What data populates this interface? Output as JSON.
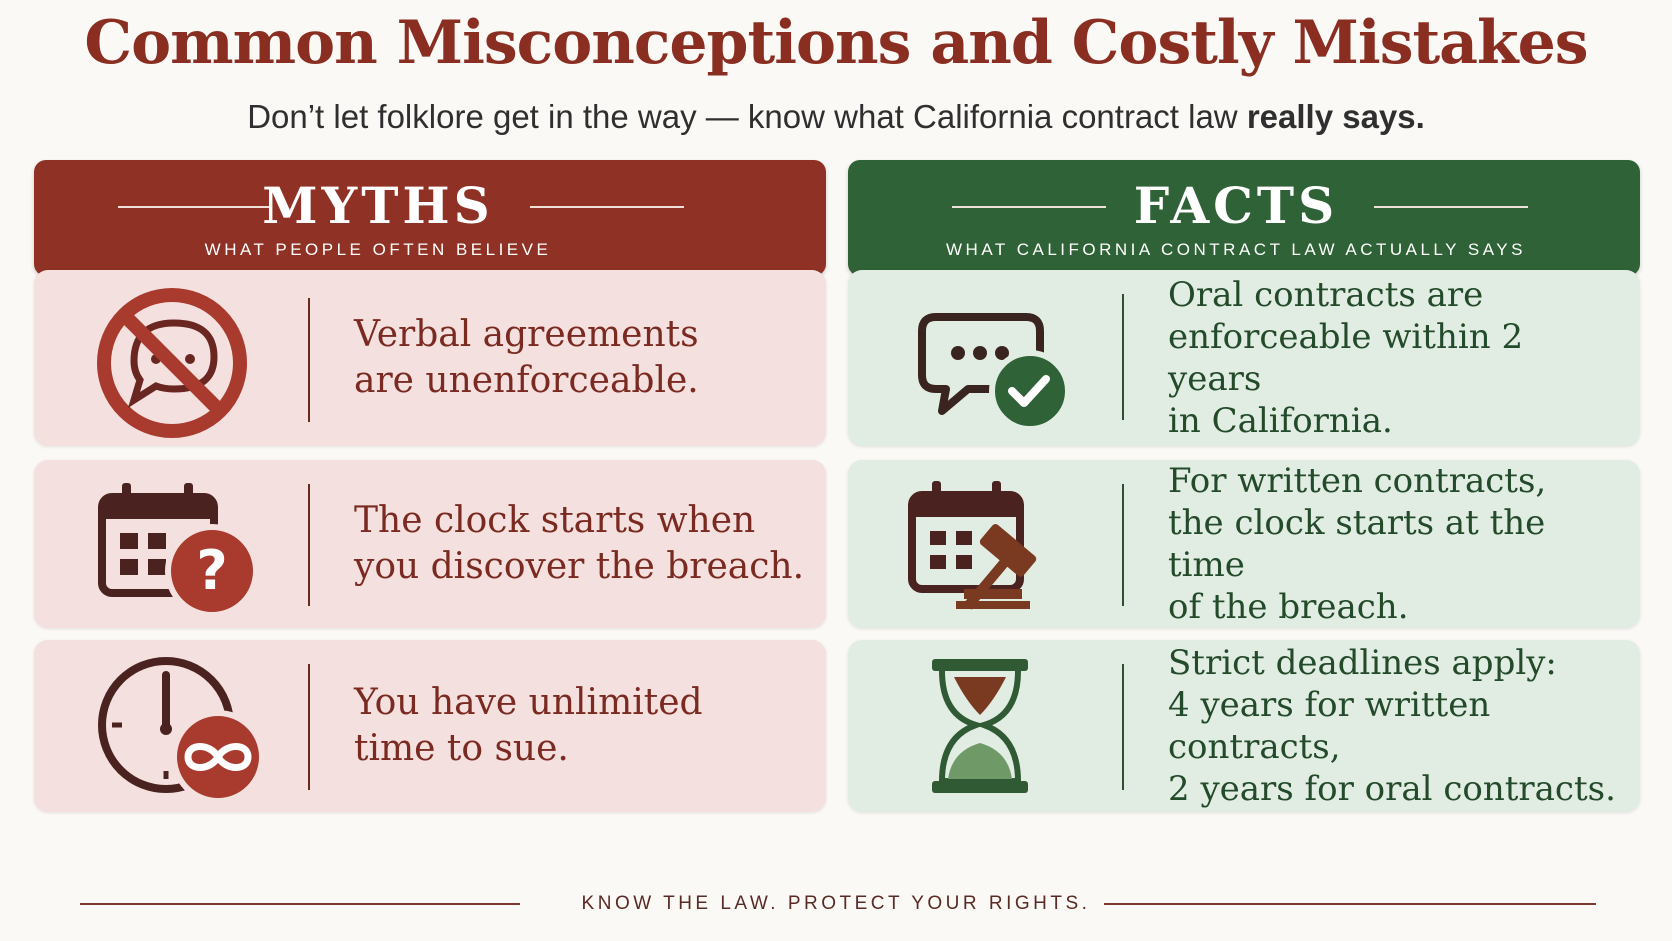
{
  "title": "Common Misconceptions and Costly Mistakes",
  "subtitle": {
    "prefix": "Don’t let folklore get in the way — know what California contract law ",
    "emphasis": "really says."
  },
  "colors": {
    "myth_accent": "#8f3125",
    "fact_accent": "#2f6236",
    "myth_card": "#f4e0de",
    "fact_card": "#e1ede2"
  },
  "myths": {
    "heading": "MYTHS",
    "subheading": "WHAT PEOPLE OFTEN BELIEVE",
    "items": [
      {
        "icon": "no-talking-icon",
        "lines": [
          "Verbal agreements",
          "are unenforceable."
        ]
      },
      {
        "icon": "calendar-question-icon",
        "lines": [
          "The clock starts when",
          "you discover the breach."
        ]
      },
      {
        "icon": "clock-infinity-icon",
        "lines": [
          "You have unlimited",
          "time to sue."
        ]
      }
    ]
  },
  "facts": {
    "heading": "FACTS",
    "subheading": "WHAT CALIFORNIA CONTRACT LAW ACTUALLY SAYS",
    "items": [
      {
        "icon": "chat-check-icon",
        "lines": [
          "Oral contracts are",
          "enforceable within 2 years",
          "in California."
        ]
      },
      {
        "icon": "calendar-gavel-icon",
        "lines": [
          "For written contracts,",
          "the clock starts at the time",
          "of the breach."
        ]
      },
      {
        "icon": "hourglass-icon",
        "lines": [
          "Strict deadlines apply:",
          "4 years for written contracts,",
          "2 years for oral contracts."
        ]
      }
    ]
  },
  "footer": "KNOW THE LAW. PROTECT YOUR RIGHTS."
}
